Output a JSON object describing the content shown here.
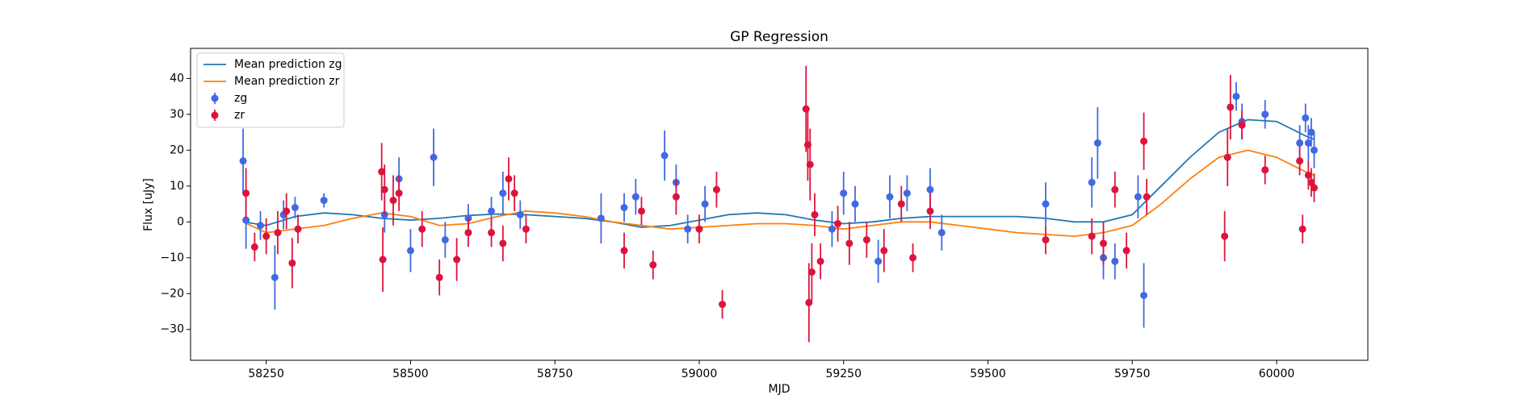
{
  "chart_data": {
    "type": "line",
    "title": "GP Regression",
    "x_label": "MJD",
    "y_label": "Flux [uJy]",
    "xlim": [
      58119,
      60158
    ],
    "ylim": [
      -38.6,
      48.4
    ],
    "xticks": [
      58250,
      58500,
      58750,
      59000,
      59250,
      59500,
      59750,
      60000
    ],
    "yticks": [
      {
        "value": -30,
        "label": "−30"
      },
      {
        "value": -20,
        "label": "−20"
      },
      {
        "value": -10,
        "label": "−10"
      },
      0,
      10,
      20,
      30,
      40
    ],
    "legend": "upper left",
    "series": [
      {
        "name": "Mean prediction zg",
        "type": "line",
        "color": "#1f77b4",
        "x": [
          58210,
          58250,
          58300,
          58350,
          58400,
          58450,
          58500,
          58550,
          58600,
          58650,
          58700,
          58750,
          58800,
          58850,
          58900,
          58950,
          59000,
          59050,
          59100,
          59150,
          59200,
          59250,
          59300,
          59350,
          59400,
          59450,
          59500,
          59550,
          59600,
          59650,
          59700,
          59750,
          59800,
          59850,
          59900,
          59950,
          60000,
          60050,
          60065
        ],
        "values": [
          0,
          -1,
          1.5,
          2.5,
          2,
          1,
          0.5,
          1,
          1.8,
          2.2,
          2,
          1.5,
          1,
          0,
          -1.5,
          -1,
          0.5,
          2,
          2.5,
          2,
          0.5,
          -0.5,
          0,
          1,
          1.5,
          1.5,
          1.5,
          1.5,
          1,
          0,
          0,
          2,
          10,
          18,
          25,
          28.5,
          28,
          24,
          23
        ]
      },
      {
        "name": "Mean prediction zr",
        "type": "line",
        "color": "#ff7f0e",
        "x": [
          58210,
          58250,
          58300,
          58350,
          58400,
          58450,
          58500,
          58550,
          58600,
          58650,
          58700,
          58750,
          58800,
          58850,
          58900,
          58950,
          59000,
          59050,
          59100,
          59150,
          59200,
          59250,
          59300,
          59350,
          59400,
          59450,
          59500,
          59550,
          59600,
          59650,
          59700,
          59750,
          59800,
          59850,
          59900,
          59950,
          60000,
          60050,
          60065
        ],
        "values": [
          0,
          -3,
          -2,
          -1,
          1,
          2.5,
          1.5,
          -1,
          -0.5,
          1.5,
          3,
          2.5,
          1.5,
          0,
          -1,
          -2,
          -1.5,
          -1,
          -0.5,
          -0.5,
          -1,
          -2,
          -1,
          0,
          0,
          -1,
          -2,
          -3,
          -3.5,
          -4,
          -3,
          -1,
          5,
          12,
          18,
          20,
          18,
          14,
          13
        ]
      },
      {
        "name": "zg",
        "type": "errorbar",
        "color": "#4169e1",
        "x": [
          58210,
          58215,
          58240,
          58265,
          58280,
          58300,
          58350,
          58455,
          58480,
          58500,
          58540,
          58560,
          58600,
          58640,
          58660,
          58690,
          58830,
          58870,
          58890,
          58940,
          58960,
          58980,
          59010,
          59230,
          59250,
          59270,
          59310,
          59330,
          59360,
          59400,
          59420,
          59600,
          59680,
          59690,
          59700,
          59720,
          59760,
          59770,
          59930,
          59940,
          59980,
          60040,
          60050,
          60055,
          60060,
          60065
        ],
        "values": [
          17,
          0.5,
          -1,
          -15.5,
          2,
          4,
          6,
          2,
          12,
          -8,
          18,
          -5,
          1,
          3,
          8,
          2,
          1,
          4,
          7,
          18.5,
          11,
          -2,
          5,
          -2,
          8,
          5,
          -11,
          7,
          8,
          9,
          -3,
          5,
          11,
          22,
          -10,
          -11,
          7,
          -20.5,
          35,
          28,
          30,
          22,
          29,
          22,
          25,
          20
        ],
        "errors": [
          9,
          8,
          4,
          9,
          4,
          3,
          2,
          5,
          6,
          6,
          8,
          5,
          4,
          4,
          6,
          4,
          7,
          4,
          5,
          7,
          5,
          4,
          5,
          5,
          6,
          5,
          6,
          6,
          5,
          6,
          5,
          6,
          7,
          10,
          6,
          5,
          6,
          9,
          4,
          5,
          4,
          5,
          4,
          5,
          4,
          5
        ]
      },
      {
        "name": "zr",
        "type": "errorbar",
        "color": "#dc143c",
        "x": [
          58215,
          58230,
          58250,
          58270,
          58285,
          58295,
          58305,
          58450,
          58452,
          58455,
          58470,
          58480,
          58520,
          58550,
          58580,
          58600,
          58640,
          58660,
          58670,
          58680,
          58700,
          58870,
          58900,
          58920,
          58960,
          59000,
          59030,
          59040,
          59185,
          59188,
          59190,
          59192,
          59195,
          59200,
          59210,
          59240,
          59260,
          59290,
          59320,
          59350,
          59370,
          59400,
          59600,
          59680,
          59700,
          59720,
          59740,
          59770,
          59775,
          59910,
          59915,
          59920,
          59940,
          59980,
          60040,
          60045,
          60055,
          60060,
          60065
        ],
        "values": [
          8,
          -7,
          -4,
          -3,
          3,
          -11.5,
          -2,
          14,
          -10.5,
          9,
          6,
          8,
          -2,
          -15.5,
          -10.5,
          -3,
          -3,
          -6,
          12,
          8,
          -2,
          -8,
          3,
          -12,
          7,
          -2,
          9,
          -23,
          31.5,
          21.5,
          -22.5,
          16,
          -14,
          2,
          -11,
          -0.5,
          -6,
          -5,
          -8,
          5,
          -10,
          3,
          -5,
          -4,
          -6,
          9,
          -8,
          22.5,
          7,
          -4,
          18,
          32,
          27,
          14.5,
          17,
          -2,
          13,
          11,
          9.5
        ],
        "errors": [
          7,
          4,
          5,
          6,
          5,
          7,
          4,
          8,
          9,
          7,
          7,
          5,
          5,
          5,
          6,
          4,
          4,
          5,
          6,
          5,
          4,
          5,
          4,
          4,
          5,
          4,
          5,
          4,
          12,
          10,
          11,
          10,
          8,
          6,
          5,
          5,
          6,
          5,
          6,
          5,
          4,
          5,
          4,
          5,
          6,
          5,
          5,
          8,
          5,
          7,
          8,
          9,
          4,
          4,
          4,
          4,
          4,
          4,
          4
        ]
      }
    ]
  }
}
